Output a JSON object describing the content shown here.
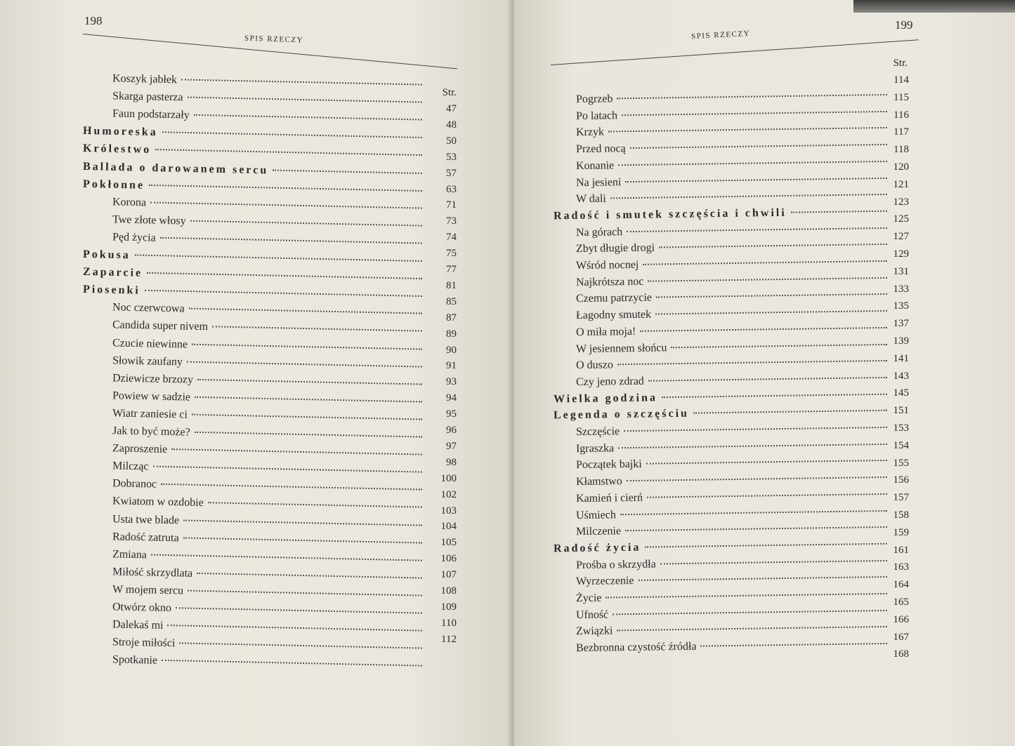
{
  "left_page": {
    "page_number": "198",
    "running_head": "SPIS RZECZY",
    "column_label": "Str.",
    "entries": [
      {
        "title": "Koszyk jabłek",
        "level": 2
      },
      {
        "title": "Skarga pasterza",
        "level": 2
      },
      {
        "title": "Faun podstarzały",
        "level": 2
      },
      {
        "title": "Humoreska",
        "level": 1
      },
      {
        "title": "Królestwo",
        "level": 1
      },
      {
        "title": "Ballada o darowanem sercu",
        "level": 1
      },
      {
        "title": "Pokłonne",
        "level": 1
      },
      {
        "title": "Korona",
        "level": 2
      },
      {
        "title": "Twe złote włosy",
        "level": 2
      },
      {
        "title": "Pęd życia",
        "level": 2
      },
      {
        "title": "Pokusa",
        "level": 1
      },
      {
        "title": "Zaparcie",
        "level": 1
      },
      {
        "title": "Piosenki",
        "level": 1
      },
      {
        "title": "Noc czerwcowa",
        "level": 2
      },
      {
        "title": "Candida super nivem",
        "level": 2
      },
      {
        "title": "Czucie niewinne",
        "level": 2
      },
      {
        "title": "Słowik zaufany",
        "level": 2
      },
      {
        "title": "Dziewicze brzozy",
        "level": 2
      },
      {
        "title": "Powiew w sadzie",
        "level": 2
      },
      {
        "title": "Wiatr zaniesie ci",
        "level": 2
      },
      {
        "title": "Jak to być może?",
        "level": 2
      },
      {
        "title": "Zaproszenie",
        "level": 2
      },
      {
        "title": "Milcząc",
        "level": 2
      },
      {
        "title": "Dobranoc",
        "level": 2
      },
      {
        "title": "Kwiatom w ozdobie",
        "level": 2
      },
      {
        "title": "Usta twe blade",
        "level": 2
      },
      {
        "title": "Radość zatruta",
        "level": 2
      },
      {
        "title": "Zmiana",
        "level": 2
      },
      {
        "title": "Miłość skrzydlata",
        "level": 2
      },
      {
        "title": "W mojem sercu",
        "level": 2
      },
      {
        "title": "Otwórz okno",
        "level": 2
      },
      {
        "title": "Dalekaś mi",
        "level": 2
      },
      {
        "title": "Stroje miłości",
        "level": 2
      },
      {
        "title": "Spotkanie",
        "level": 2
      }
    ],
    "page_numbers": [
      "47",
      "48",
      "50",
      "53",
      "57",
      "63",
      "71",
      "73",
      "74",
      "75",
      "77",
      "81",
      "85",
      "87",
      "89",
      "90",
      "91",
      "93",
      "94",
      "95",
      "96",
      "97",
      "98",
      "100",
      "102",
      "103",
      "104",
      "105",
      "106",
      "107",
      "108",
      "109",
      "110",
      "112"
    ]
  },
  "right_page": {
    "page_number": "199",
    "running_head": "SPIS RZECZY",
    "column_label": "Str.",
    "entries": [
      {
        "title": "Pogrzeb",
        "level": 2
      },
      {
        "title": "Po latach",
        "level": 2
      },
      {
        "title": "Krzyk",
        "level": 2
      },
      {
        "title": "Przed nocą",
        "level": 2
      },
      {
        "title": "Konanie",
        "level": 2
      },
      {
        "title": "Na jesieni",
        "level": 2
      },
      {
        "title": "W dali",
        "level": 2
      },
      {
        "title": "Radość i smutek szczęścia i chwili",
        "level": 1
      },
      {
        "title": "Na górach",
        "level": 2
      },
      {
        "title": "Zbyt długie drogi",
        "level": 2
      },
      {
        "title": "Wśród nocnej",
        "level": 2
      },
      {
        "title": "Najkrótsza noc",
        "level": 2
      },
      {
        "title": "Czemu patrzycie",
        "level": 2
      },
      {
        "title": "Łagodny smutek",
        "level": 2
      },
      {
        "title": "O miła moja!",
        "level": 2
      },
      {
        "title": "W jesiennem słońcu",
        "level": 2
      },
      {
        "title": "O duszo",
        "level": 2
      },
      {
        "title": "Czy jeno zdrad",
        "level": 2
      },
      {
        "title": "Wielka godzina",
        "level": 1
      },
      {
        "title": "Legenda o szczęściu",
        "level": 1
      },
      {
        "title": "Szczęście",
        "level": 2
      },
      {
        "title": "Igraszka",
        "level": 2
      },
      {
        "title": "Początek bajki",
        "level": 2
      },
      {
        "title": "Kłamstwo",
        "level": 2
      },
      {
        "title": "Kamień i cierń",
        "level": 2
      },
      {
        "title": "Uśmiech",
        "level": 2
      },
      {
        "title": "Milczenie",
        "level": 2
      },
      {
        "title": "Radość życia",
        "level": 1
      },
      {
        "title": "Prośba o skrzydła",
        "level": 2
      },
      {
        "title": "Wyrzeczenie",
        "level": 2
      },
      {
        "title": "Życie",
        "level": 2
      },
      {
        "title": "Ufność",
        "level": 2
      },
      {
        "title": "Związki",
        "level": 2
      },
      {
        "title": "Bezbronna czystość źródła",
        "level": 2
      }
    ],
    "page_numbers": [
      "114",
      "115",
      "116",
      "117",
      "118",
      "120",
      "121",
      "123",
      "125",
      "127",
      "129",
      "131",
      "133",
      "135",
      "137",
      "139",
      "141",
      "143",
      "145",
      "151",
      "153",
      "154",
      "155",
      "156",
      "157",
      "158",
      "159",
      "161",
      "163",
      "164",
      "165",
      "166",
      "167",
      "168"
    ]
  }
}
